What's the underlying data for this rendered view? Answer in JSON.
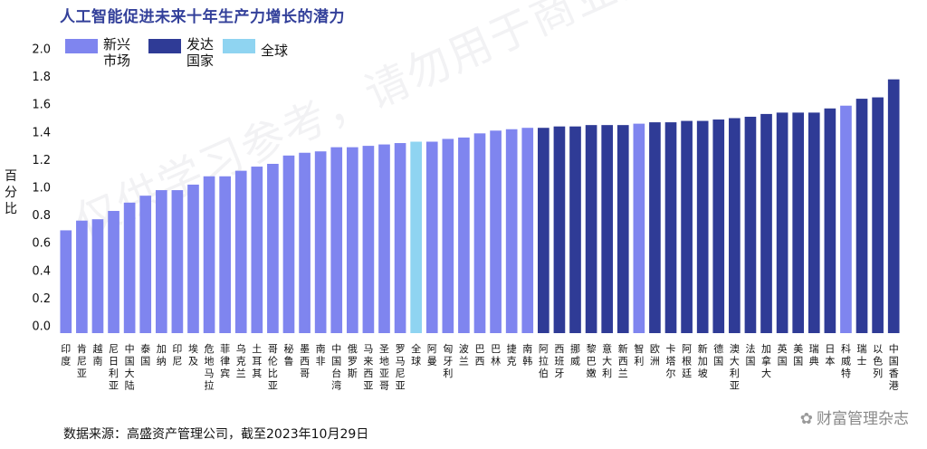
{
  "title": "人工智能促进未来十年生产力增长的潜力",
  "source": "数据来源：高盛资产管理公司，截至2023年10月29日",
  "watermark": "财富管理杂志",
  "diagonal_watermark": "仅供学习参考，请勿用于商业用途",
  "colors": {
    "新兴市场": "#7f85ef",
    "发达国家": "#2f3b96",
    "全球": "#8fd4f1",
    "title": "#33409a"
  },
  "chart_data": {
    "type": "bar",
    "title": "人工智能促进未来十年生产力增长的潜力",
    "ylabel": "百分比",
    "xlabel": "",
    "ylim": [
      0.0,
      2.0
    ],
    "yticks": [
      "0.0",
      "0.2",
      "0.4",
      "0.6",
      "0.8",
      "1.0",
      "1.2",
      "1.4",
      "1.6",
      "1.8",
      "2.0"
    ],
    "grid": false,
    "legend": {
      "position": "top-left",
      "entries": [
        {
          "key": "新兴市场",
          "lines": [
            "新兴",
            "市场"
          ]
        },
        {
          "key": "发达国家",
          "lines": [
            "发达",
            "国家"
          ]
        },
        {
          "key": "全球",
          "lines": [
            "全球"
          ]
        }
      ]
    },
    "categories": [
      "印度",
      "肯尼亚",
      "越南",
      "尼日利亚",
      "中国大陆",
      "泰国",
      "加纳",
      "印尼",
      "埃及",
      "危地马拉",
      "菲律宾",
      "乌克兰",
      "土耳其",
      "哥伦比亚",
      "秘鲁",
      "墨西哥",
      "南非",
      "中国台湾",
      "俄罗斯",
      "马来西亚",
      "圣地亚哥",
      "罗马尼亚",
      "全球",
      "阿曼",
      "匈牙利",
      "波兰",
      "巴西",
      "巴林",
      "捷克",
      "南韩",
      "阿拉伯",
      "西班牙",
      "挪威",
      "黎巴嫩",
      "意大利",
      "新西兰",
      "智利",
      "欧洲",
      "卡塔尔",
      "阿根廷",
      "新加坡",
      "德国",
      "澳大利亚",
      "法国",
      "加拿大",
      "英国",
      "美国",
      "瑞典",
      "日本",
      "科威特",
      "瑞士",
      "以色列",
      "中国香港"
    ],
    "category_lines": [
      [
        "印",
        "度"
      ],
      [
        "肯",
        "尼",
        "亚"
      ],
      [
        "越",
        "南"
      ],
      [
        "尼",
        "日",
        "利",
        "亚"
      ],
      [
        "中",
        "国",
        "大",
        "陆"
      ],
      [
        "泰",
        "国"
      ],
      [
        "加",
        "纳"
      ],
      [
        "印",
        "尼"
      ],
      [
        "埃",
        "及"
      ],
      [
        "危",
        "地",
        "马",
        "拉"
      ],
      [
        "菲",
        "律",
        "宾"
      ],
      [
        "乌",
        "克",
        "兰"
      ],
      [
        "土",
        "耳",
        "其"
      ],
      [
        "哥",
        "伦",
        "比",
        "亚"
      ],
      [
        "秘",
        "鲁"
      ],
      [
        "墨",
        "西",
        "哥"
      ],
      [
        "南",
        "非"
      ],
      [
        "中",
        "国",
        "台",
        "湾"
      ],
      [
        "俄",
        "罗",
        "斯"
      ],
      [
        "马",
        "来",
        "西",
        "亚"
      ],
      [
        "圣",
        "地",
        "亚",
        "哥"
      ],
      [
        "罗",
        "马",
        "尼",
        "亚"
      ],
      [
        "全",
        "球"
      ],
      [
        "阿",
        "曼"
      ],
      [
        "匈",
        "牙",
        "利"
      ],
      [
        "波",
        "兰"
      ],
      [
        "巴",
        "西"
      ],
      [
        "巴",
        "林"
      ],
      [
        "捷",
        "克"
      ],
      [
        "南",
        "韩"
      ],
      [
        "阿",
        "拉",
        "伯"
      ],
      [
        "西",
        "班",
        "牙"
      ],
      [
        "挪",
        "威"
      ],
      [
        "黎",
        "巴",
        "嫩"
      ],
      [
        "意",
        "大",
        "利"
      ],
      [
        "新",
        "西",
        "兰"
      ],
      [
        "智",
        "利"
      ],
      [
        "欧",
        "洲"
      ],
      [
        "卡",
        "塔",
        "尔"
      ],
      [
        "阿",
        "根",
        "廷"
      ],
      [
        "新",
        "加",
        "坡"
      ],
      [
        "德",
        "国"
      ],
      [
        "澳",
        "大",
        "利",
        "亚"
      ],
      [
        "法",
        "国"
      ],
      [
        "加",
        "拿",
        "大"
      ],
      [
        "英",
        "国"
      ],
      [
        "美",
        "国"
      ],
      [
        "瑞",
        "典"
      ],
      [
        "日",
        "本"
      ],
      [
        "科",
        "威",
        "特"
      ],
      [
        "瑞",
        "士"
      ],
      [
        "以",
        "色",
        "列"
      ],
      [
        "中",
        "国",
        "香",
        "港"
      ]
    ],
    "values": [
      0.69,
      0.76,
      0.77,
      0.83,
      0.89,
      0.94,
      0.98,
      0.98,
      1.02,
      1.08,
      1.08,
      1.12,
      1.15,
      1.17,
      1.23,
      1.25,
      1.26,
      1.29,
      1.29,
      1.3,
      1.31,
      1.32,
      1.33,
      1.33,
      1.35,
      1.36,
      1.39,
      1.41,
      1.42,
      1.43,
      1.43,
      1.44,
      1.44,
      1.45,
      1.45,
      1.45,
      1.46,
      1.47,
      1.47,
      1.48,
      1.48,
      1.49,
      1.5,
      1.51,
      1.53,
      1.54,
      1.54,
      1.54,
      1.57,
      1.59,
      1.64,
      1.65,
      1.78
    ],
    "groups": [
      "新兴市场",
      "新兴市场",
      "新兴市场",
      "新兴市场",
      "新兴市场",
      "新兴市场",
      "新兴市场",
      "新兴市场",
      "新兴市场",
      "新兴市场",
      "新兴市场",
      "新兴市场",
      "新兴市场",
      "新兴市场",
      "新兴市场",
      "新兴市场",
      "新兴市场",
      "新兴市场",
      "新兴市场",
      "新兴市场",
      "新兴市场",
      "新兴市场",
      "全球",
      "新兴市场",
      "新兴市场",
      "新兴市场",
      "新兴市场",
      "新兴市场",
      "新兴市场",
      "新兴市场",
      "发达国家",
      "发达国家",
      "发达国家",
      "发达国家",
      "发达国家",
      "发达国家",
      "新兴市场",
      "发达国家",
      "发达国家",
      "发达国家",
      "发达国家",
      "发达国家",
      "发达国家",
      "发达国家",
      "发达国家",
      "发达国家",
      "发达国家",
      "发达国家",
      "发达国家",
      "新兴市场",
      "发达国家",
      "发达国家",
      "发达国家"
    ]
  }
}
